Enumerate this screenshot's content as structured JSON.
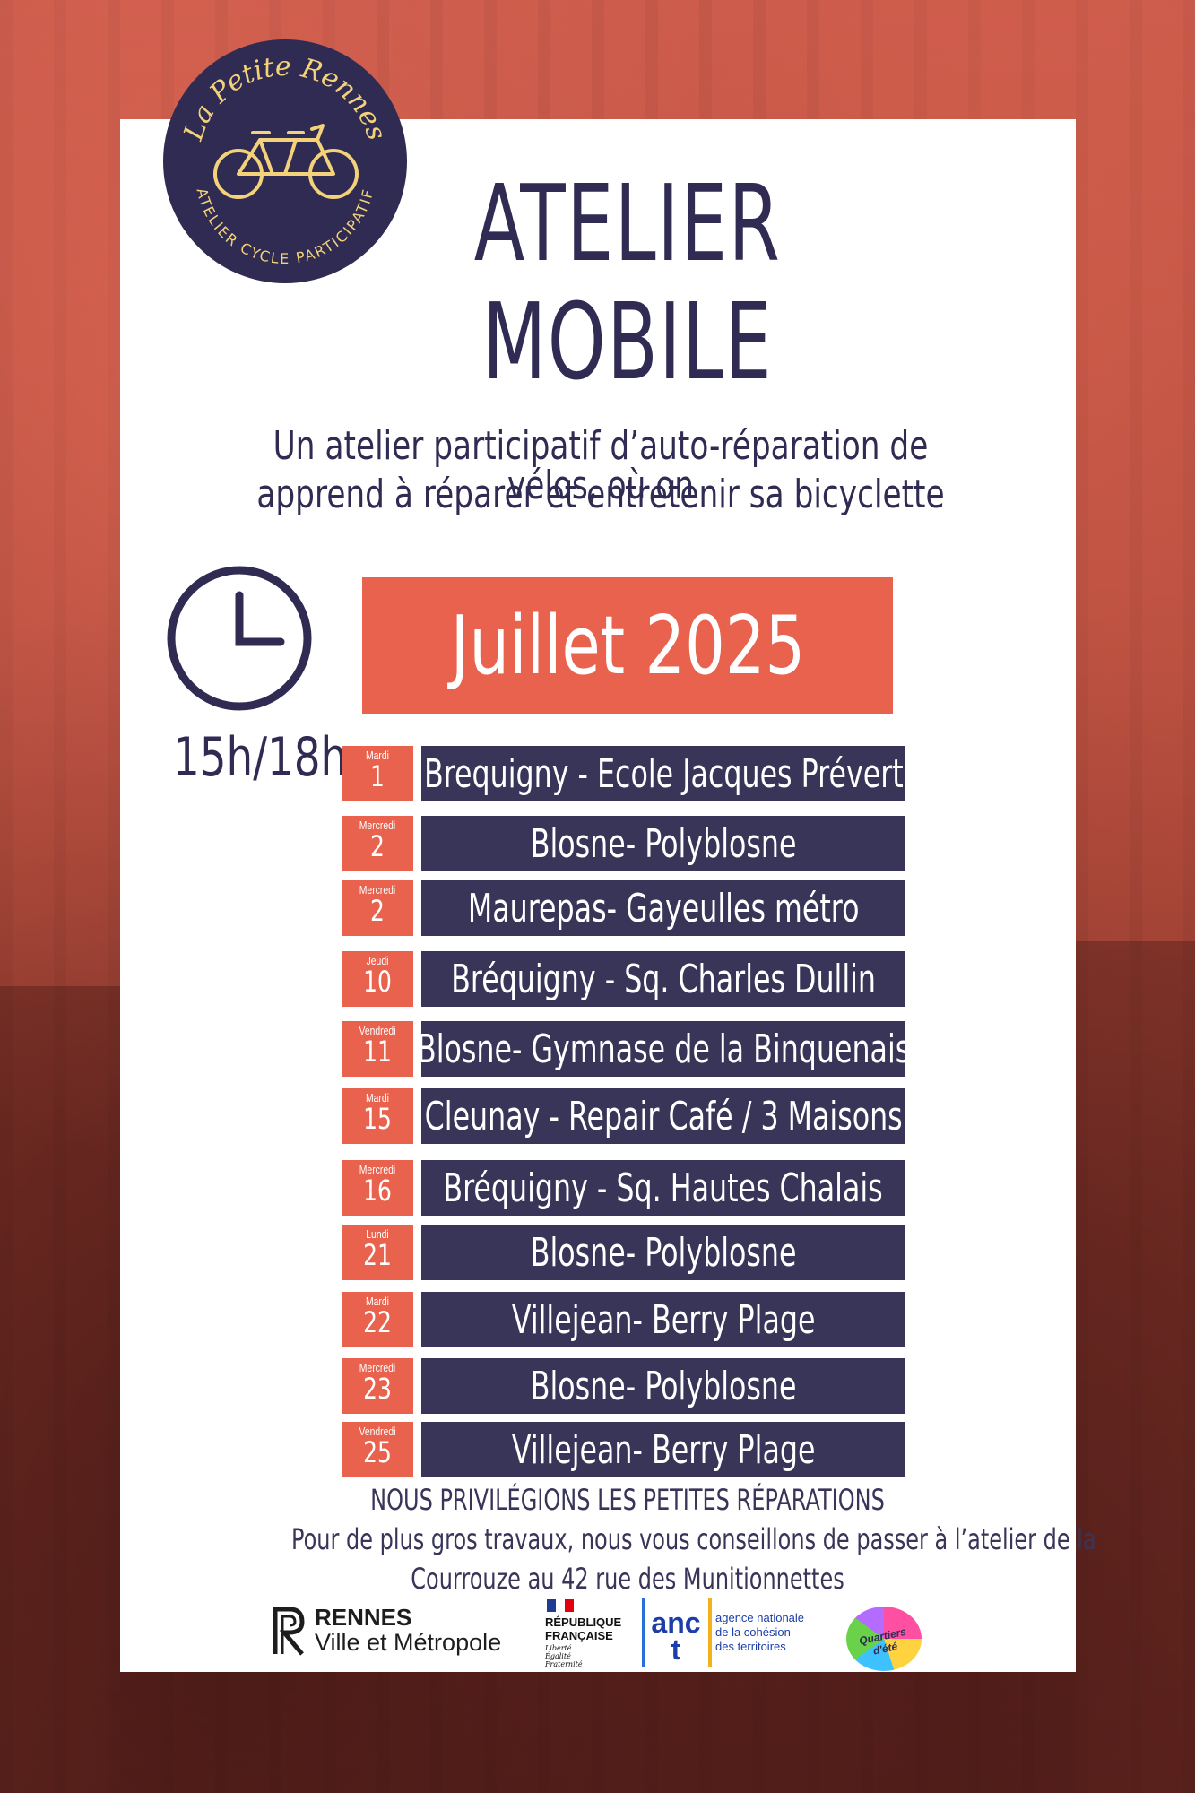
{
  "logo": {
    "name": "La Petite Rennes",
    "tagline": "ATELIER CYCLE PARTICIPATIF"
  },
  "title": {
    "line1": "ATELIER",
    "line2": "MOBILE"
  },
  "subtitle": {
    "line1": "Un atelier participatif d’auto-réparation de vélos, où on",
    "line2": "apprend à réparer et entretenir sa bicyclette"
  },
  "time_range": "15h/18h",
  "month": "Juillet 2025",
  "events": [
    {
      "weekday": "Mardi",
      "day": "1",
      "place": "Brequigny - Ecole Jacques Prévert"
    },
    {
      "weekday": "Mercredi",
      "day": "2",
      "place": "Blosne- Polyblosne"
    },
    {
      "weekday": "Mercredi",
      "day": "2",
      "place": "Maurepas- Gayeulles métro"
    },
    {
      "weekday": "Jeudi",
      "day": "10",
      "place": "Bréquigny - Sq. Charles Dullin"
    },
    {
      "weekday": "Vendredi",
      "day": "11",
      "place": "Blosne- Gymnase de la Binquenais"
    },
    {
      "weekday": "Mardi",
      "day": "15",
      "place": "Cleunay - Repair Café /  3 Maisons"
    },
    {
      "weekday": "Mercredi",
      "day": "16",
      "place": "Bréquigny - Sq. Hautes Chalais"
    },
    {
      "weekday": "Lundi",
      "day": "21",
      "place": "Blosne- Polyblosne"
    },
    {
      "weekday": "Mardi",
      "day": "22",
      "place": "Villejean- Berry Plage"
    },
    {
      "weekday": "Mercredi",
      "day": "23",
      "place": "Blosne- Polyblosne"
    },
    {
      "weekday": "Vendredi",
      "day": "25",
      "place": "Villejean- Berry Plage"
    }
  ],
  "notes": {
    "headline": "NOUS PRIVILÉGIONS LES PETITES RÉPARATIONS",
    "line1": "Pour de plus gros travaux, nous vous conseillons de passer à l’atelier de la",
    "line2": "Courrouze au 42 rue des Munitionnettes"
  },
  "sponsors": {
    "rennes": {
      "line1": "RENNES",
      "line2": "Ville et Métropole"
    },
    "republique": {
      "line1": "RÉPUBLIQUE",
      "line2": "FRANÇAISE",
      "motto1": "Liberté",
      "motto2": "Égalité",
      "motto3": "Fraternité"
    },
    "anct": {
      "logo": "anct",
      "line1": "agence nationale",
      "line2": "de la cohésion",
      "line3": "des territoires"
    },
    "quartiers": {
      "name": "Quartiers d'été"
    }
  },
  "colors": {
    "navy": "#2f2b52",
    "block_navy": "#393559",
    "coral": "#e8624d",
    "logo_gold": "#f3d27a"
  }
}
